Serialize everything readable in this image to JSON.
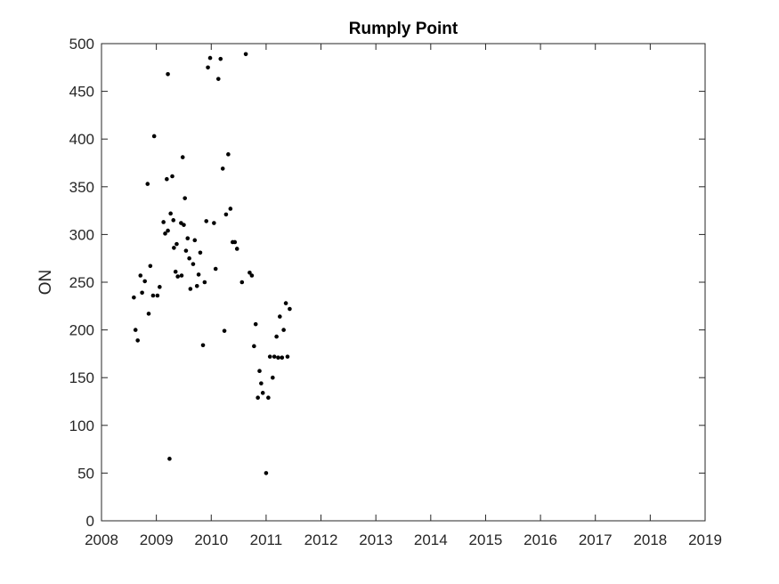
{
  "chart_data": {
    "type": "scatter",
    "title": "Rumply Point",
    "xlabel": "",
    "ylabel": "ON",
    "xlim": [
      2008,
      2019
    ],
    "ylim": [
      0,
      500
    ],
    "x_ticks": [
      "2008",
      "2009",
      "2010",
      "2011",
      "2012",
      "2013",
      "2014",
      "2015",
      "2016",
      "2017",
      "2018",
      "2019"
    ],
    "y_ticks": [
      "0",
      "50",
      "100",
      "150",
      "200",
      "250",
      "300",
      "350",
      "400",
      "450",
      "500"
    ],
    "grid": false,
    "marker_color": "#000000",
    "series": [
      {
        "points": [
          [
            2008.59,
            234
          ],
          [
            2008.62,
            200
          ],
          [
            2008.66,
            189
          ],
          [
            2008.71,
            257
          ],
          [
            2008.74,
            239
          ],
          [
            2008.79,
            251
          ],
          [
            2008.84,
            353
          ],
          [
            2008.86,
            217
          ],
          [
            2008.89,
            267
          ],
          [
            2008.94,
            236
          ],
          [
            2008.96,
            403
          ],
          [
            2009.02,
            236
          ],
          [
            2009.06,
            245
          ],
          [
            2009.13,
            313
          ],
          [
            2009.16,
            301
          ],
          [
            2009.19,
            358
          ],
          [
            2009.21,
            304
          ],
          [
            2009.21,
            468
          ],
          [
            2009.24,
            65
          ],
          [
            2009.26,
            322
          ],
          [
            2009.29,
            361
          ],
          [
            2009.31,
            315
          ],
          [
            2009.32,
            286
          ],
          [
            2009.35,
            261
          ],
          [
            2009.37,
            290
          ],
          [
            2009.39,
            256
          ],
          [
            2009.45,
            312
          ],
          [
            2009.46,
            257
          ],
          [
            2009.48,
            381
          ],
          [
            2009.5,
            310
          ],
          [
            2009.52,
            338
          ],
          [
            2009.54,
            283
          ],
          [
            2009.57,
            296
          ],
          [
            2009.6,
            275
          ],
          [
            2009.62,
            243
          ],
          [
            2009.67,
            269
          ],
          [
            2009.7,
            294
          ],
          [
            2009.74,
            246
          ],
          [
            2009.77,
            258
          ],
          [
            2009.8,
            281
          ],
          [
            2009.85,
            184
          ],
          [
            2009.88,
            250
          ],
          [
            2009.91,
            314
          ],
          [
            2009.94,
            475
          ],
          [
            2009.98,
            485
          ],
          [
            2010.05,
            312
          ],
          [
            2010.08,
            264
          ],
          [
            2010.13,
            463
          ],
          [
            2010.17,
            484
          ],
          [
            2010.21,
            369
          ],
          [
            2010.24,
            199
          ],
          [
            2010.27,
            321
          ],
          [
            2010.31,
            384
          ],
          [
            2010.35,
            327
          ],
          [
            2010.39,
            292
          ],
          [
            2010.43,
            292
          ],
          [
            2010.47,
            285
          ],
          [
            2010.56,
            250
          ],
          [
            2010.63,
            489
          ],
          [
            2010.7,
            260
          ],
          [
            2010.74,
            257
          ],
          [
            2010.78,
            183
          ],
          [
            2010.81,
            206
          ],
          [
            2010.85,
            129
          ],
          [
            2010.88,
            157
          ],
          [
            2010.91,
            144
          ],
          [
            2010.94,
            134
          ],
          [
            2011.0,
            50
          ],
          [
            2011.04,
            129
          ],
          [
            2011.07,
            172
          ],
          [
            2011.12,
            150
          ],
          [
            2011.15,
            172
          ],
          [
            2011.19,
            193
          ],
          [
            2011.22,
            171
          ],
          [
            2011.25,
            214
          ],
          [
            2011.29,
            171
          ],
          [
            2011.32,
            200
          ],
          [
            2011.36,
            228
          ],
          [
            2011.39,
            172
          ],
          [
            2011.43,
            222
          ]
        ]
      }
    ]
  }
}
